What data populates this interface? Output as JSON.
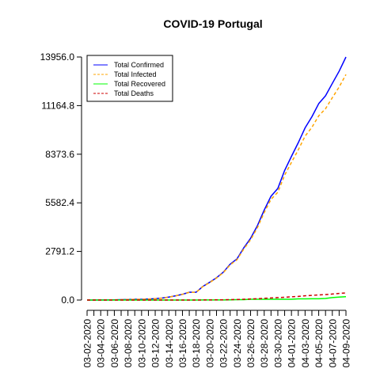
{
  "chart_data": {
    "type": "line",
    "title": "COVID-19 Portugal",
    "xlabel": "",
    "ylabel": "",
    "ylim": [
      0,
      13956.0
    ],
    "y_ticks": [
      "0.0",
      "2791.2",
      "5582.4",
      "8373.6",
      "11164.8",
      "13956.0"
    ],
    "x": [
      "03-02-2020",
      "03-03-2020",
      "03-04-2020",
      "03-05-2020",
      "03-06-2020",
      "03-07-2020",
      "03-08-2020",
      "03-09-2020",
      "03-10-2020",
      "03-11-2020",
      "03-12-2020",
      "03-13-2020",
      "03-14-2020",
      "03-15-2020",
      "03-16-2020",
      "03-17-2020",
      "03-18-2020",
      "03-19-2020",
      "03-20-2020",
      "03-21-2020",
      "03-22-2020",
      "03-23-2020",
      "03-24-2020",
      "03-25-2020",
      "03-26-2020",
      "03-27-2020",
      "03-28-2020",
      "03-29-2020",
      "03-30-2020",
      "03-31-2020",
      "04-01-2020",
      "04-02-2020",
      "04-03-2020",
      "04-04-2020",
      "04-05-2020",
      "04-06-2020",
      "04-07-2020",
      "04-08-2020",
      "04-09-2020"
    ],
    "x_tick_labels": [
      "03-02-2020",
      "03-04-2020",
      "03-06-2020",
      "03-08-2020",
      "03-10-2020",
      "03-12-2020",
      "03-14-2020",
      "03-16-2020",
      "03-18-2020",
      "03-20-2020",
      "03-22-2020",
      "03-24-2020",
      "03-26-2020",
      "03-28-2020",
      "03-30-2020",
      "04-01-2020",
      "04-03-2020",
      "04-05-2020",
      "04-07-2020",
      "04-09-2020"
    ],
    "legend_position": "top-left",
    "grid": false,
    "series": [
      {
        "name": "Total Confirmed",
        "color": "#0000ff",
        "dash": "solid",
        "values": [
          2,
          2,
          5,
          8,
          13,
          20,
          30,
          39,
          41,
          59,
          78,
          112,
          169,
          245,
          331,
          448,
          448,
          785,
          1020,
          1280,
          1600,
          2060,
          2362,
          2995,
          3544,
          4268,
          5170,
          5962,
          6408,
          7443,
          8251,
          9034,
          9886,
          10524,
          11278,
          11730,
          12442,
          13141,
          13956
        ]
      },
      {
        "name": "Total Infected",
        "color": "#ffa500",
        "dash": "dashed",
        "values": [
          2,
          2,
          5,
          8,
          13,
          20,
          30,
          39,
          41,
          59,
          78,
          110,
          167,
          243,
          328,
          443,
          441,
          775,
          1005,
          1262,
          1575,
          2022,
          2313,
          2932,
          3461,
          4156,
          5028,
          5784,
          6191,
          7172,
          7904,
          8624,
          9412,
          9916,
          10577,
          10987,
          11619,
          12232,
          12949
        ]
      },
      {
        "name": "Total Recovered",
        "color": "#00ff00",
        "dash": "solid",
        "values": [
          0,
          0,
          0,
          0,
          0,
          0,
          0,
          0,
          0,
          0,
          0,
          0,
          0,
          0,
          0,
          0,
          0,
          5,
          5,
          5,
          5,
          14,
          22,
          22,
          43,
          43,
          43,
          43,
          43,
          43,
          43,
          68,
          68,
          75,
          75,
          89,
          140,
          172,
          196
        ]
      },
      {
        "name": "Total Deaths",
        "color": "#cc0000",
        "dash": "dashed",
        "values": [
          0,
          0,
          0,
          0,
          0,
          0,
          0,
          0,
          0,
          0,
          0,
          0,
          0,
          0,
          0,
          1,
          2,
          3,
          6,
          12,
          14,
          23,
          30,
          43,
          60,
          76,
          100,
          119,
          140,
          160,
          187,
          209,
          246,
          266,
          295,
          311,
          345,
          380,
          409
        ]
      }
    ]
  }
}
